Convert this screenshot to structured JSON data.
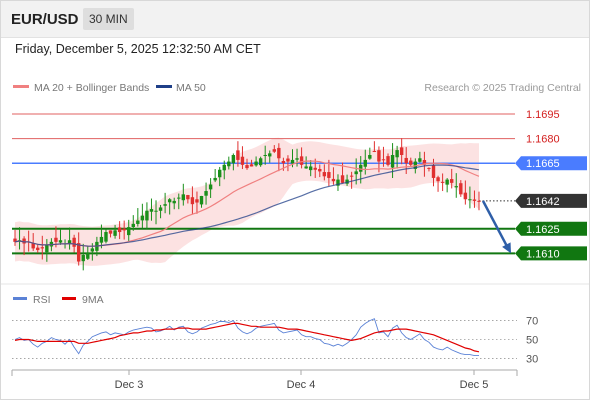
{
  "header": {
    "symbol": "EUR/USD",
    "timeframe": "30 MIN"
  },
  "timestamp": "Friday, December 5, 2025 12:32:50 AM CET",
  "legend": {
    "ma20": {
      "label": "MA 20 + Bollinger Bands",
      "color": "#f08080"
    },
    "ma50": {
      "label": "MA 50",
      "color": "#1f3f88"
    },
    "source": "Research © 2025 Trading Central"
  },
  "rsi_legend": {
    "rsi": {
      "label": "RSI",
      "color": "#5b82d6"
    },
    "ma9": {
      "label": "9MA",
      "color": "#e00000"
    }
  },
  "colors": {
    "up_candle": "#1a8f1a",
    "down_candle": "#e03030",
    "support": "#117711",
    "pivot": "#4a7cff",
    "current": "#333333",
    "arrow": "#2f5fa8"
  },
  "chart_data": [
    {
      "type": "candlestick",
      "title": "EUR/USD",
      "x_ticks": [
        "Dec 3",
        "Dec 4",
        "Dec 5"
      ],
      "ylim": [
        1.1598,
        1.1706
      ],
      "price_levels": [
        {
          "label": "1.1695",
          "value": 1.1695,
          "kind": "resistance"
        },
        {
          "label": "1.1680",
          "value": 1.168,
          "kind": "resistance"
        },
        {
          "label": "1.1665",
          "value": 1.1665,
          "kind": "pivot"
        },
        {
          "label": "1.1642",
          "value": 1.1642,
          "kind": "current"
        },
        {
          "label": "1.1625",
          "value": 1.1625,
          "kind": "support"
        },
        {
          "label": "1.1610",
          "value": 1.161,
          "kind": "support"
        }
      ],
      "projection": {
        "from": 1.1642,
        "to": 1.161
      },
      "closes": [
        1.1617,
        1.1618,
        1.1616,
        1.1617,
        1.1613,
        1.1612,
        1.1613,
        1.1615,
        1.1617,
        1.1617,
        1.1618,
        1.1616,
        1.1618,
        1.1614,
        1.1605,
        1.1609,
        1.161,
        1.1613,
        1.1617,
        1.162,
        1.1623,
        1.1622,
        1.1624,
        1.1623,
        1.1624,
        1.1626,
        1.1628,
        1.163,
        1.1633,
        1.1636,
        1.1637,
        1.1636,
        1.1638,
        1.164,
        1.1643,
        1.1642,
        1.1644,
        1.1646,
        1.1643,
        1.164,
        1.1641,
        1.1645,
        1.1648,
        1.1652,
        1.1656,
        1.1661,
        1.1664,
        1.1666,
        1.167,
        1.1667,
        1.1664,
        1.1662,
        1.1663,
        1.1666,
        1.1668,
        1.167,
        1.1671,
        1.1672,
        1.1668,
        1.1665,
        1.1666,
        1.1667,
        1.1668,
        1.1664,
        1.1663,
        1.1663,
        1.1661,
        1.166,
        1.1657,
        1.1656,
        1.1654,
        1.1655,
        1.1653,
        1.1655,
        1.1657,
        1.166,
        1.1664,
        1.1667,
        1.167,
        1.1672,
        1.1666,
        1.1667,
        1.1664,
        1.167,
        1.1673,
        1.167,
        1.1665,
        1.1664,
        1.1666,
        1.1668,
        1.1664,
        1.1662,
        1.1656,
        1.1654,
        1.1653,
        1.1655,
        1.1653,
        1.1651,
        1.1646,
        1.1643,
        1.1643,
        1.1642,
        1.1642
      ]
    },
    {
      "type": "line",
      "title": "RSI",
      "x_ticks": [
        "Dec 3",
        "Dec 4",
        "Dec 5"
      ],
      "ylim": [
        22,
        78
      ],
      "y_ticks": [
        30,
        50,
        70
      ],
      "series": [
        {
          "name": "RSI",
          "values": [
            50,
            52,
            49,
            50,
            45,
            42,
            46,
            48,
            52,
            50,
            49,
            45,
            50,
            42,
            35,
            44,
            48,
            53,
            55,
            57,
            58,
            55,
            57,
            56,
            55,
            58,
            60,
            61,
            62,
            63,
            62,
            58,
            59,
            61,
            64,
            60,
            63,
            64,
            58,
            56,
            58,
            62,
            64,
            66,
            67,
            69,
            69,
            68,
            70,
            62,
            58,
            56,
            58,
            62,
            64,
            65,
            66,
            67,
            60,
            57,
            58,
            59,
            60,
            55,
            53,
            53,
            51,
            50,
            46,
            45,
            43,
            45,
            43,
            46,
            50,
            55,
            63,
            67,
            70,
            72,
            57,
            58,
            53,
            62,
            65,
            57,
            52,
            50,
            53,
            56,
            50,
            47,
            42,
            40,
            39,
            42,
            39,
            37,
            35,
            34,
            34,
            33,
            33
          ]
        },
        {
          "name": "9MA",
          "values": [
            49,
            50,
            50,
            50,
            49,
            48,
            48,
            48,
            48,
            48,
            48,
            48,
            48,
            48,
            46,
            46,
            46,
            47,
            48,
            49,
            50,
            51,
            52,
            54,
            55,
            56,
            57,
            57,
            58,
            59,
            59,
            60,
            60,
            61,
            61,
            61,
            62,
            62,
            62,
            61,
            61,
            61,
            61,
            62,
            63,
            64,
            65,
            66,
            67,
            67,
            66,
            65,
            64,
            64,
            63,
            63,
            63,
            63,
            63,
            62,
            61,
            61,
            61,
            60,
            59,
            58,
            57,
            56,
            55,
            54,
            53,
            52,
            51,
            50,
            49,
            50,
            51,
            53,
            55,
            57,
            58,
            59,
            59,
            60,
            61,
            61,
            61,
            60,
            59,
            58,
            57,
            56,
            55,
            53,
            51,
            49,
            47,
            45,
            43,
            41,
            40,
            38,
            37
          ]
        }
      ]
    }
  ]
}
